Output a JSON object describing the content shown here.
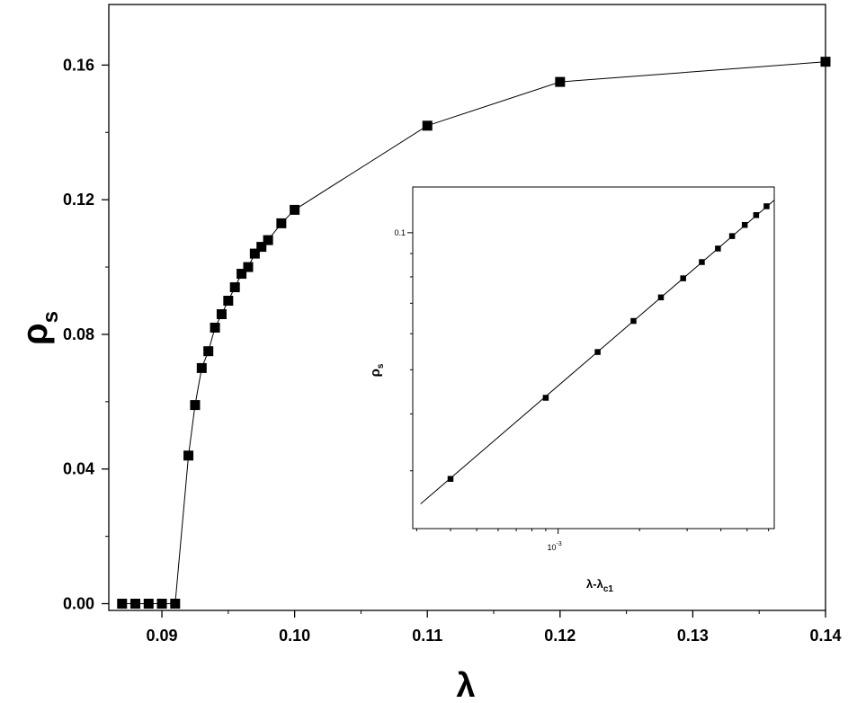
{
  "chart_data": [
    {
      "type": "line",
      "xlabel": "λ",
      "ylabel_main": "ρ",
      "ylabel_sub": "s",
      "xlim": [
        0.086,
        0.14
      ],
      "ylim": [
        -0.002,
        0.178
      ],
      "xticks": [
        0.09,
        0.1,
        0.11,
        0.12,
        0.13,
        0.14
      ],
      "xtick_labels": [
        "0.09",
        "0.10",
        "0.11",
        "0.12",
        "0.13",
        "0.14"
      ],
      "yticks": [
        0.0,
        0.04,
        0.08,
        0.12,
        0.16
      ],
      "ytick_labels": [
        "0.00",
        "0.04",
        "0.08",
        "0.12",
        "0.16"
      ],
      "marker": "square",
      "color": "#000000",
      "series": [
        {
          "x": [
            0.087,
            0.088,
            0.089,
            0.09,
            0.091,
            0.092,
            0.0925,
            0.093,
            0.0935,
            0.094,
            0.0945,
            0.095,
            0.0955,
            0.096,
            0.0965,
            0.097,
            0.0975,
            0.098,
            0.099,
            0.1,
            0.11,
            0.12,
            0.14
          ],
          "y": [
            0.0,
            0.0,
            0.0,
            0.0,
            0.0,
            0.044,
            0.059,
            0.07,
            0.075,
            0.082,
            0.086,
            0.09,
            0.094,
            0.098,
            0.1,
            0.104,
            0.106,
            0.108,
            0.113,
            0.117,
            0.142,
            0.155,
            0.161
          ]
        }
      ]
    },
    {
      "type": "scatter",
      "scale": "log-log",
      "xlabel_main": "λ-λ",
      "xlabel_sub": "c1",
      "ylabel_main": "ρ",
      "ylabel_sub": "s",
      "xlim": [
        0.00029,
        0.0063
      ],
      "ylim": [
        0.0224,
        0.126
      ],
      "xtick_label_value": 0.001,
      "xtick_label_base": "10",
      "xtick_label_exp": "-3",
      "ytick_label_value": 0.1,
      "ytick_label": "0.1",
      "marker": "square",
      "fit_line": {
        "slope": 0.51,
        "x_range": [
          0.00031,
          0.0063
        ]
      },
      "series": [
        {
          "x": [
            0.0004,
            0.0009,
            0.0014,
            0.0019,
            0.0024,
            0.0029,
            0.0034,
            0.0039,
            0.0044,
            0.0049,
            0.0054,
            0.0059
          ],
          "y": [
            0.0288,
            0.0434,
            0.0547,
            0.064,
            0.0721,
            0.0794,
            0.0862,
            0.0923,
            0.0983,
            0.104,
            0.1093,
            0.1143
          ]
        }
      ]
    }
  ]
}
